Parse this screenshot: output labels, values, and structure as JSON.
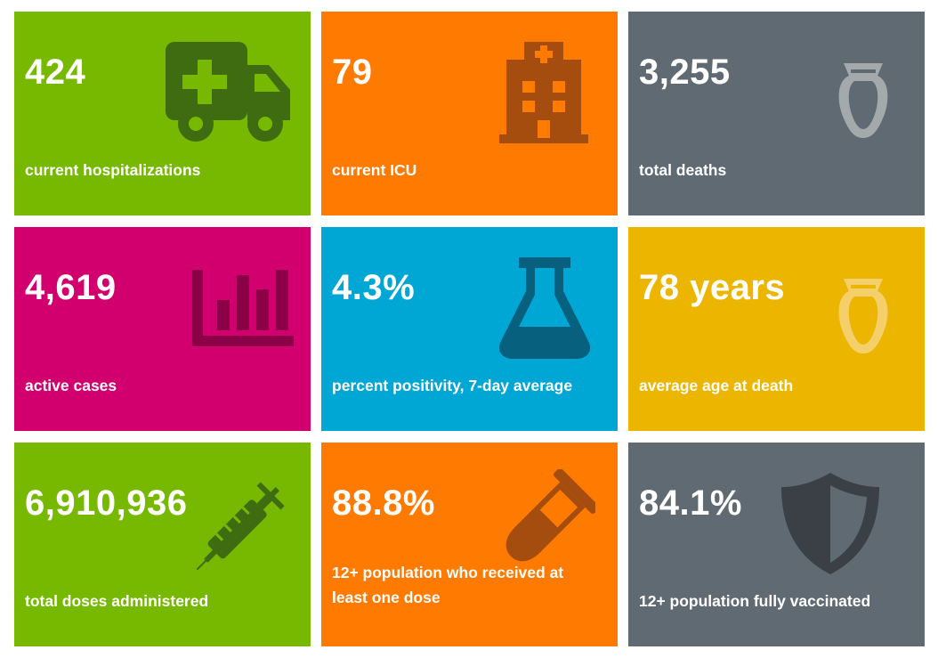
{
  "colors": {
    "green": "#76b900",
    "orange": "#ff7a00",
    "gray": "#606a73",
    "magenta": "#d1006e",
    "blue": "#00a6d4",
    "gold": "#ecb600"
  },
  "tiles": [
    {
      "value": "424",
      "label": "current hospitalizations",
      "icon": "ambulance-icon",
      "color": "#76b900"
    },
    {
      "value": "79",
      "label": "current ICU",
      "icon": "hospital-building-icon",
      "color": "#ff7a00"
    },
    {
      "value": "3,255",
      "label": "total deaths",
      "icon": "urn-icon",
      "color": "#606a73"
    },
    {
      "value": "4,619",
      "label": "active cases",
      "icon": "bar-chart-icon",
      "color": "#d1006e"
    },
    {
      "value": "4.3%",
      "label": "percent positivity, 7-day average",
      "icon": "flask-icon",
      "color": "#00a6d4"
    },
    {
      "value": "78 years",
      "label": "average age at death",
      "icon": "urn-icon",
      "color": "#ecb600"
    },
    {
      "value": "6,910,936",
      "label": "total doses administered",
      "icon": "syringe-icon",
      "color": "#76b900"
    },
    {
      "value": "88.8%",
      "label": "12+ population who received at least one dose",
      "icon": "test-tube-icon",
      "color": "#ff7a00"
    },
    {
      "value": "84.1%",
      "label": "12+ population fully vaccinated",
      "icon": "shield-icon",
      "color": "#606a73"
    }
  ]
}
